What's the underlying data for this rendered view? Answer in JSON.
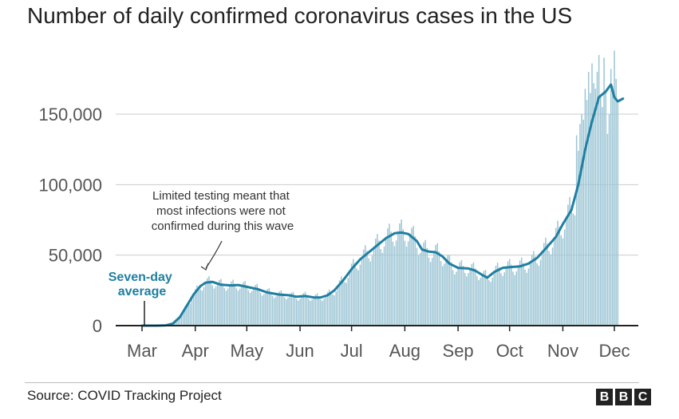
{
  "title": "Number of daily confirmed coronavirus cases in the US",
  "source": "Source: COVID Tracking Project",
  "logo_letters": [
    "B",
    "B",
    "C"
  ],
  "chart_data": {
    "type": "bar",
    "ylim": [
      0,
      200000
    ],
    "yticks": [
      {
        "value": 0,
        "label": "0"
      },
      {
        "value": 50000,
        "label": "50,000"
      },
      {
        "value": 100000,
        "label": "100,000"
      },
      {
        "value": 150000,
        "label": "150,000"
      }
    ],
    "xticks": [
      {
        "day": 0,
        "label": "Mar"
      },
      {
        "day": 31,
        "label": "Apr"
      },
      {
        "day": 61,
        "label": "May"
      },
      {
        "day": 92,
        "label": "Jun"
      },
      {
        "day": 122,
        "label": "Jul"
      },
      {
        "day": 153,
        "label": "Aug"
      },
      {
        "day": 184,
        "label": "Sep"
      },
      {
        "day": 214,
        "label": "Oct"
      },
      {
        "day": 245,
        "label": "Nov"
      },
      {
        "day": 275,
        "label": "Dec"
      }
    ],
    "days": 280,
    "bar_color": "#9cc5d4",
    "line_color": "#1f7fa1",
    "avg_points": [
      [
        0,
        0
      ],
      [
        9,
        0
      ],
      [
        14,
        200
      ],
      [
        18,
        1500
      ],
      [
        22,
        6000
      ],
      [
        26,
        14000
      ],
      [
        30,
        22000
      ],
      [
        34,
        28000
      ],
      [
        37,
        30500
      ],
      [
        41,
        31000
      ],
      [
        46,
        29000
      ],
      [
        52,
        28500
      ],
      [
        56,
        28800
      ],
      [
        61,
        27500
      ],
      [
        67,
        26000
      ],
      [
        73,
        23500
      ],
      [
        80,
        22000
      ],
      [
        86,
        21500
      ],
      [
        90,
        20500
      ],
      [
        95,
        21000
      ],
      [
        100,
        20000
      ],
      [
        104,
        20000
      ],
      [
        108,
        21500
      ],
      [
        112,
        25000
      ],
      [
        117,
        32000
      ],
      [
        122,
        40000
      ],
      [
        127,
        47000
      ],
      [
        132,
        52000
      ],
      [
        137,
        57000
      ],
      [
        142,
        62000
      ],
      [
        147,
        65500
      ],
      [
        151,
        66000
      ],
      [
        155,
        65000
      ],
      [
        160,
        60000
      ],
      [
        163,
        54000
      ],
      [
        167,
        52500
      ],
      [
        171,
        52000
      ],
      [
        175,
        49000
      ],
      [
        179,
        44000
      ],
      [
        184,
        41000
      ],
      [
        190,
        40500
      ],
      [
        194,
        39000
      ],
      [
        198,
        36000
      ],
      [
        201,
        34000
      ],
      [
        205,
        38000
      ],
      [
        210,
        41000
      ],
      [
        214,
        41500
      ],
      [
        220,
        42000
      ],
      [
        225,
        44000
      ],
      [
        230,
        48000
      ],
      [
        236,
        56000
      ],
      [
        241,
        63000
      ],
      [
        245,
        72000
      ],
      [
        250,
        82000
      ],
      [
        254,
        100000
      ],
      [
        258,
        125000
      ],
      [
        262,
        145000
      ],
      [
        266,
        162000
      ],
      [
        270,
        166000
      ],
      [
        273,
        171000
      ],
      [
        275,
        162000
      ],
      [
        277,
        159000
      ],
      [
        280,
        161000
      ]
    ],
    "spikes": [
      [
        253,
        135000
      ],
      [
        254,
        124000
      ],
      [
        255,
        143000
      ],
      [
        256,
        150000
      ],
      [
        257,
        146000
      ],
      [
        258,
        168000
      ],
      [
        259,
        160000
      ],
      [
        260,
        180000
      ],
      [
        261,
        165000
      ],
      [
        262,
        186000
      ],
      [
        263,
        172000
      ],
      [
        264,
        168000
      ],
      [
        265,
        180000
      ],
      [
        266,
        192000
      ],
      [
        267,
        162000
      ],
      [
        268,
        155000
      ],
      [
        269,
        190000
      ],
      [
        270,
        166000
      ],
      [
        271,
        136000
      ],
      [
        272,
        150000
      ],
      [
        273,
        182000
      ],
      [
        274,
        170000
      ],
      [
        275,
        195000
      ],
      [
        276,
        175000
      ],
      [
        277,
        160000
      ]
    ],
    "annotation_lines": [
      "Limited testing meant that",
      "most infections were not",
      "confirmed during this wave"
    ],
    "series_label_lines": [
      "Seven-day",
      "average"
    ]
  }
}
